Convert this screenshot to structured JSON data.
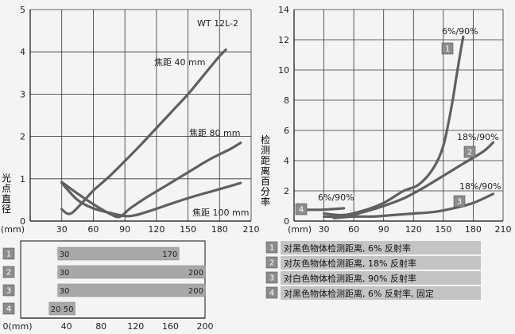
{
  "chart_data": [
    {
      "type": "line",
      "ylabel": "光点直径",
      "xlabel": "(mm)",
      "model_label": "WT 12L-2",
      "xlim": [
        0,
        210
      ],
      "ylim": [
        0,
        5
      ],
      "x_ticks": [
        "30",
        "60",
        "90",
        "120",
        "150",
        "180",
        "210"
      ],
      "y_ticks": [
        "0",
        "1",
        "2",
        "3",
        "4",
        "5"
      ],
      "grid": true,
      "series": [
        {
          "name": "焦距 40 mm",
          "points": [
            [
              30,
              0.28
            ],
            [
              35,
              0.18
            ],
            [
              40,
              0.2
            ],
            [
              50,
              0.45
            ],
            [
              60,
              0.72
            ],
            [
              75,
              1.05
            ],
            [
              90,
              1.42
            ],
            [
              105,
              1.8
            ],
            [
              120,
              2.2
            ],
            [
              135,
              2.6
            ],
            [
              150,
              3.0
            ],
            [
              165,
              3.45
            ],
            [
              180,
              3.9
            ],
            [
              186,
              4.05
            ]
          ]
        },
        {
          "name": "焦距 80 mm",
          "points": [
            [
              30,
              0.92
            ],
            [
              45,
              0.65
            ],
            [
              60,
              0.4
            ],
            [
              75,
              0.18
            ],
            [
              85,
              0.1
            ],
            [
              95,
              0.3
            ],
            [
              110,
              0.55
            ],
            [
              130,
              0.85
            ],
            [
              150,
              1.15
            ],
            [
              170,
              1.45
            ],
            [
              190,
              1.7
            ],
            [
              200,
              1.85
            ]
          ]
        },
        {
          "name": "焦距 100 mm",
          "points": [
            [
              30,
              0.9
            ],
            [
              45,
              0.5
            ],
            [
              60,
              0.3
            ],
            [
              75,
              0.2
            ],
            [
              90,
              0.12
            ],
            [
              100,
              0.14
            ],
            [
              115,
              0.25
            ],
            [
              135,
              0.42
            ],
            [
              155,
              0.58
            ],
            [
              175,
              0.72
            ],
            [
              200,
              0.9
            ]
          ]
        }
      ]
    },
    {
      "type": "line",
      "ylabel": "检测距离百分率",
      "xlabel": "(mm)",
      "xlim": [
        0,
        210
      ],
      "ylim": [
        0,
        14
      ],
      "x_ticks": [
        "30",
        "60",
        "90",
        "120",
        "150",
        "180",
        "210"
      ],
      "y_ticks": [
        "0",
        "2",
        "4",
        "6",
        "8",
        "10",
        "12",
        "14"
      ],
      "grid": true,
      "series": [
        {
          "id": "1",
          "label": "6%/90%",
          "points": [
            [
              30,
              0.5
            ],
            [
              50,
              0.4
            ],
            [
              70,
              0.7
            ],
            [
              90,
              1.2
            ],
            [
              110,
              2.0
            ],
            [
              125,
              2.4
            ],
            [
              140,
              3.5
            ],
            [
              150,
              5.0
            ],
            [
              158,
              7.5
            ],
            [
              163,
              9.5
            ],
            [
              168,
              11.5
            ],
            [
              170,
              12.2
            ]
          ]
        },
        {
          "id": "2",
          "label": "18%/90%",
          "points": [
            [
              30,
              0.3
            ],
            [
              50,
              0.3
            ],
            [
              70,
              0.6
            ],
            [
              90,
              1.0
            ],
            [
              110,
              1.5
            ],
            [
              130,
              2.2
            ],
            [
              150,
              3.0
            ],
            [
              170,
              3.8
            ],
            [
              190,
              4.6
            ],
            [
              200,
              5.2
            ]
          ]
        },
        {
          "id": "3",
          "label": "18%/90%",
          "points": [
            [
              40,
              0.2
            ],
            [
              60,
              0.3
            ],
            [
              80,
              0.3
            ],
            [
              100,
              0.4
            ],
            [
              120,
              0.5
            ],
            [
              140,
              0.6
            ],
            [
              160,
              0.85
            ],
            [
              180,
              1.2
            ],
            [
              200,
              1.8
            ]
          ]
        },
        {
          "id": "4",
          "label": "6%/90%",
          "points": [
            [
              10,
              0.75
            ],
            [
              25,
              0.75
            ],
            [
              35,
              0.78
            ],
            [
              45,
              0.82
            ],
            [
              50,
              0.85
            ]
          ]
        }
      ]
    },
    {
      "type": "bar",
      "xlabel": "0(mm)",
      "xlim": [
        0,
        200
      ],
      "x_ticks": [
        "0(mm)",
        "40",
        "80",
        "120",
        "160",
        "200"
      ],
      "bars": [
        {
          "id": "1",
          "start": 30,
          "end": 170,
          "start_label": "30",
          "end_label": "170"
        },
        {
          "id": "2",
          "start": 30,
          "end": 200,
          "start_label": "30",
          "end_label": "200"
        },
        {
          "id": "3",
          "start": 30,
          "end": 200,
          "start_label": "30",
          "end_label": "200"
        },
        {
          "id": "4",
          "start": 20,
          "end": 50,
          "start_label": "20",
          "end_label": "50"
        }
      ]
    }
  ],
  "legend": [
    {
      "id": "1",
      "text": "对黑色物体检测距离, 6% 反射率"
    },
    {
      "id": "2",
      "text": "对灰色物体检测距离, 18% 反射率"
    },
    {
      "id": "3",
      "text": "对白色物体检测距离, 90% 反射率"
    },
    {
      "id": "4",
      "text": "对黑色物体检测距离, 6% 反射率, 固定"
    }
  ],
  "colors": {
    "line": "#606060",
    "box": "#8c8c8c",
    "bar": "#a8a8a8",
    "legend_bg": "#c4c4c4",
    "grid": "#333333"
  }
}
